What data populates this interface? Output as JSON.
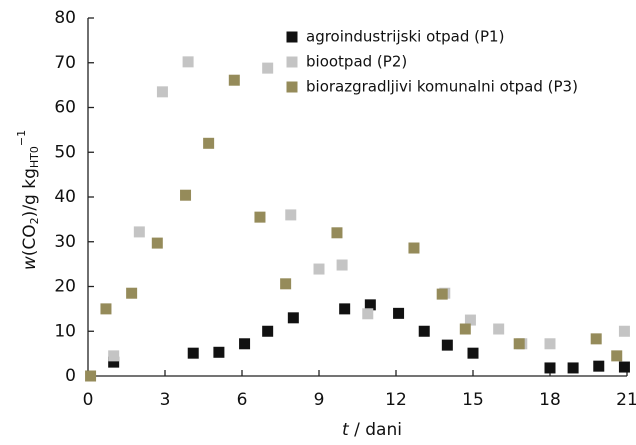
{
  "chart_data": {
    "type": "scatter",
    "xlabel_var": "t",
    "xlabel": "/ dani",
    "ylabel_parts": [
      "w",
      "(CO",
      "2",
      ")/g kg",
      "HT0",
      "−1"
    ],
    "xlim": [
      0,
      21
    ],
    "xticks": [
      0,
      3,
      6,
      9,
      12,
      15,
      18,
      21
    ],
    "ylim": [
      0,
      80
    ],
    "yticks": [
      0,
      10,
      20,
      30,
      40,
      50,
      60,
      70,
      80
    ],
    "legend": "top-right",
    "series": [
      {
        "name": "agroindustrijski otpad (P1)",
        "color": "#111111",
        "x": [
          1.0,
          4.1,
          5.1,
          6.1,
          7.0,
          8.0,
          10.0,
          11.0,
          12.1,
          13.1,
          14.0,
          15.0,
          18.0,
          18.9,
          19.9,
          20.9
        ],
        "values": [
          3.1,
          5.1,
          5.3,
          7.2,
          10,
          13,
          15,
          15.9,
          14,
          10,
          6.9,
          5.1,
          1.8,
          1.8,
          2.2,
          2
        ]
      },
      {
        "name": "biootpad (P2)",
        "color": "#c4c4c4",
        "x": [
          1.0,
          2.0,
          2.9,
          3.9,
          7.0,
          7.9,
          9.0,
          9.9,
          10.9,
          13.9,
          14.9,
          16.0,
          16.9,
          18.0,
          20.9
        ],
        "values": [
          4.5,
          32.2,
          63.5,
          70.2,
          68.8,
          36,
          23.9,
          24.8,
          13.9,
          18.5,
          12.5,
          10.5,
          7.2,
          7.2,
          10
        ]
      },
      {
        "name": "biorazgradljivi komunalni otpad (P3)",
        "color": "#958b5a",
        "x": [
          0.1,
          0.7,
          1.7,
          2.7,
          3.8,
          4.7,
          5.7,
          6.7,
          7.7,
          9.7,
          12.7,
          13.8,
          14.7,
          16.8,
          19.8,
          20.6
        ],
        "values": [
          0,
          15,
          18.5,
          29.7,
          40.4,
          52,
          66.1,
          35.5,
          20.6,
          32,
          28.6,
          18.3,
          10.5,
          7.2,
          8.3,
          4.5
        ]
      }
    ]
  }
}
